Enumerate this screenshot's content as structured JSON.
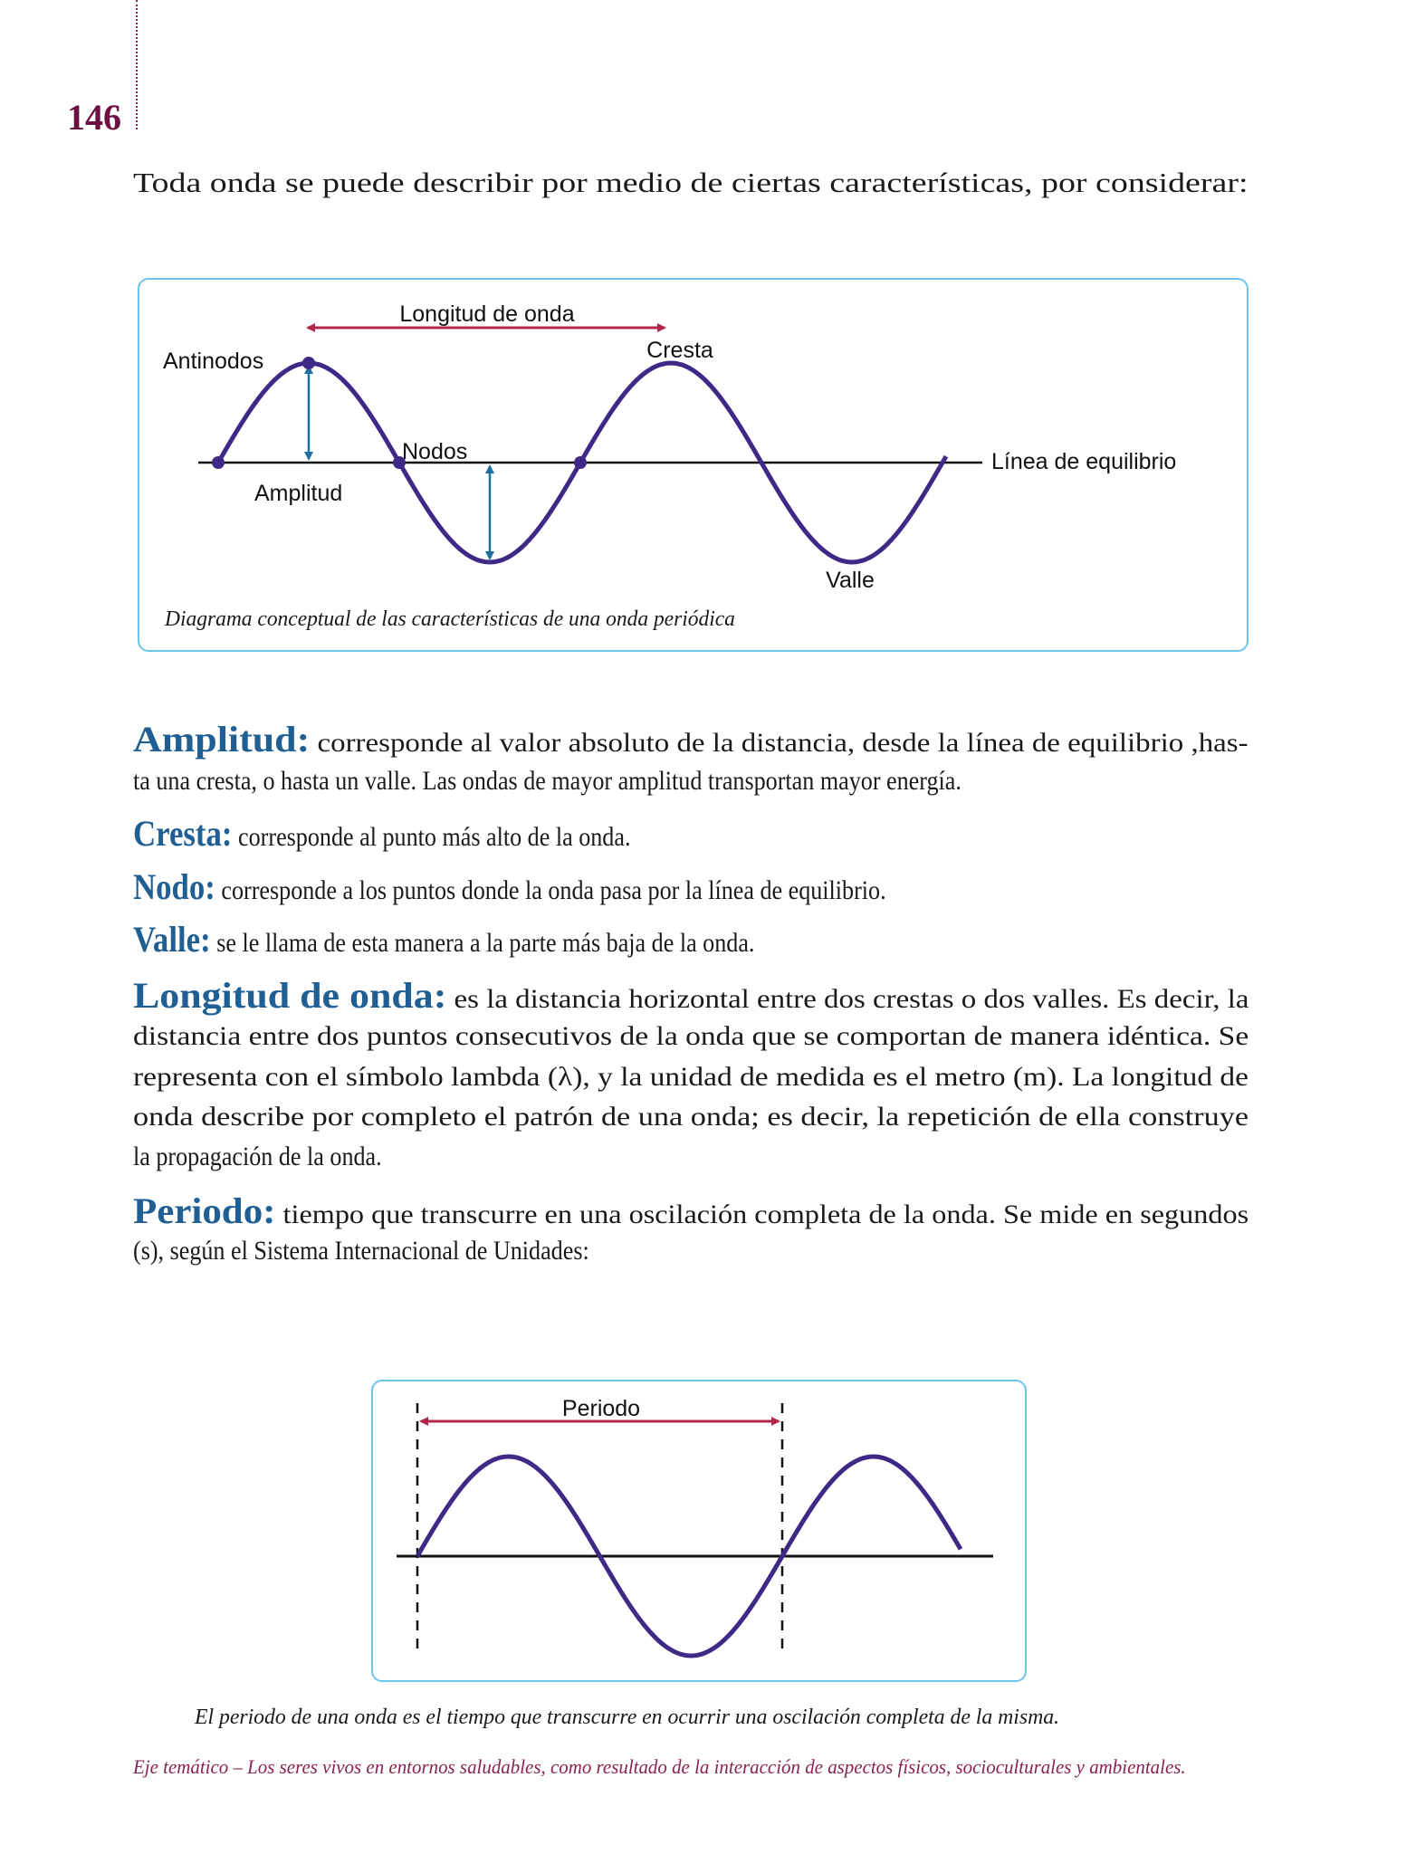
{
  "page_number": "146",
  "intro": "Toda onda se puede describir por medio de ciertas características, por considerar:",
  "diagram1": {
    "labels": {
      "wavelength": "Longitud de onda",
      "antinodes": "Antinodos",
      "crest": "Cresta",
      "nodes": "Nodos",
      "amplitude": "Amplitud",
      "equilibrium": "Línea de equilibrio",
      "trough": "Valle"
    },
    "caption": "Diagrama conceptual de las características de una onda periódica"
  },
  "definitions": [
    {
      "term": "Amplitud:",
      "lines": [
        "corresponde al valor absoluto de la distancia, desde la línea de equilibrio ,has-",
        "ta una cresta, o hasta un valle. Las ondas de mayor amplitud transportan mayor energía."
      ]
    },
    {
      "term": "Cresta:",
      "lines": [
        "corresponde al punto más alto de la onda."
      ]
    },
    {
      "term": "Nodo:",
      "lines": [
        "corresponde a los puntos donde la onda pasa por la línea de equilibrio."
      ]
    },
    {
      "term": "Valle:",
      "lines": [
        "se le llama de esta manera a la parte más baja de la onda."
      ]
    },
    {
      "term": "Longitud de onda:",
      "lines": [
        "es la distancia horizontal entre dos crestas o dos valles. Es decir, la",
        "distancia entre dos puntos consecutivos de la onda que se comportan de manera idéntica. Se",
        "representa con el símbolo lambda (λ), y la unidad de medida es el metro (m). La longitud de",
        "onda describe por completo el patrón de una onda; es decir, la repetición de ella construye",
        "la propagación de la onda."
      ]
    },
    {
      "term": "Periodo:",
      "lines": [
        "tiempo que transcurre en una oscilación completa de la onda. Se mide en segundos",
        "(s), según el Sistema Internacional de Unidades:"
      ]
    }
  ],
  "diagram2": {
    "label": "Periodo",
    "caption": "El periodo de una onda es el tiempo que transcurre en ocurrir una oscilación completa de la misma."
  },
  "footer": "Eje temático – Los seres vivos en entornos saludables, como resultado de la interacción de aspectos físicos, socioculturales y ambientales.",
  "colors": {
    "heading": "#1f5f93",
    "page_number": "#6b1040",
    "footer": "#8b2252",
    "box_border": "#6cc4ea",
    "wave": "#3e2a86",
    "span_arrow": "#b0274a",
    "amplitude_arrow": "#1d6fa0"
  }
}
